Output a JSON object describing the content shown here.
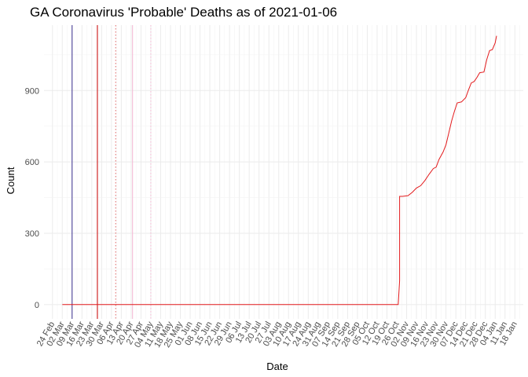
{
  "chart_data": {
    "type": "line",
    "title": "GA Coronavirus 'Probable' Deaths as of 2021-01-06",
    "xlabel": "Date",
    "ylabel": "Count",
    "x_tick_labels": [
      "24 Feb",
      "02 Mar",
      "09 Mar",
      "16 Mar",
      "23 Mar",
      "30 Mar",
      "06 Apr",
      "13 Apr",
      "20 Apr",
      "27 Apr",
      "04 May",
      "11 May",
      "18 May",
      "25 May",
      "01 Jun",
      "08 Jun",
      "15 Jun",
      "22 Jun",
      "29 Jun",
      "06 Jul",
      "13 Jul",
      "20 Jul",
      "27 Jul",
      "03 Aug",
      "10 Aug",
      "17 Aug",
      "24 Aug",
      "31 Aug",
      "07 Sep",
      "14 Sep",
      "21 Sep",
      "28 Sep",
      "05 Oct",
      "12 Oct",
      "19 Oct",
      "26 Oct",
      "02 Nov",
      "09 Nov",
      "16 Nov",
      "23 Nov",
      "30 Nov",
      "07 Dec",
      "14 Dec",
      "21 Dec",
      "28 Dec",
      "04 Jan",
      "11 Jan",
      "18 Jan"
    ],
    "x_range": [
      "2020-02-18",
      "2021-01-24"
    ],
    "y_ticks": [
      0,
      300,
      600,
      900
    ],
    "ylim": [
      -60,
      1175
    ],
    "grid": true,
    "series": [
      {
        "color": "#e31a1c",
        "points": [
          [
            "2020-03-02",
            0
          ],
          [
            "2020-10-27",
            0
          ],
          [
            "2020-10-28",
            100
          ],
          [
            "2020-10-28",
            455
          ],
          [
            "2020-10-30",
            455
          ],
          [
            "2020-11-03",
            458
          ],
          [
            "2020-11-06",
            472
          ],
          [
            "2020-11-09",
            490
          ],
          [
            "2020-11-12",
            500
          ],
          [
            "2020-11-15",
            522
          ],
          [
            "2020-11-18",
            548
          ],
          [
            "2020-11-21",
            572
          ],
          [
            "2020-11-23",
            578
          ],
          [
            "2020-11-25",
            610
          ],
          [
            "2020-11-28",
            642
          ],
          [
            "2020-11-30",
            672
          ],
          [
            "2020-12-02",
            722
          ],
          [
            "2020-12-04",
            772
          ],
          [
            "2020-12-06",
            812
          ],
          [
            "2020-12-08",
            848
          ],
          [
            "2020-12-11",
            852
          ],
          [
            "2020-12-14",
            870
          ],
          [
            "2020-12-16",
            902
          ],
          [
            "2020-12-18",
            932
          ],
          [
            "2020-12-20",
            938
          ],
          [
            "2020-12-22",
            955
          ],
          [
            "2020-12-24",
            975
          ],
          [
            "2020-12-27",
            978
          ],
          [
            "2020-12-29",
            1030
          ],
          [
            "2020-12-31",
            1068
          ],
          [
            "2021-01-02",
            1072
          ],
          [
            "2021-01-04",
            1100
          ],
          [
            "2021-01-05",
            1130
          ]
        ]
      }
    ],
    "vlines": [
      {
        "date": "2020-03-09",
        "color": "#3b2f8f",
        "style": "solid"
      },
      {
        "date": "2020-03-27",
        "color": "#cc0000",
        "style": "solid"
      },
      {
        "date": "2020-04-09",
        "color": "#e06666",
        "style": "dotted"
      },
      {
        "date": "2020-04-21",
        "color": "#f4b6d2",
        "style": "solid"
      },
      {
        "date": "2020-05-04",
        "color": "#f4b6d2",
        "style": "dotted"
      }
    ]
  }
}
